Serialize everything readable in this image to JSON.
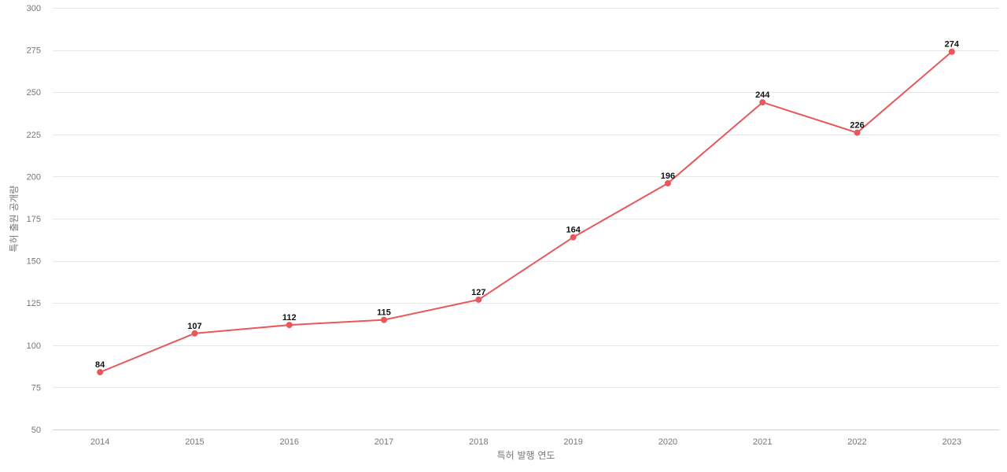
{
  "chart_data": {
    "type": "line",
    "title": "",
    "xlabel": "특허 발행 연도",
    "ylabel": "특허 출원 공개량",
    "x": [
      "2014",
      "2015",
      "2016",
      "2017",
      "2018",
      "2019",
      "2020",
      "2021",
      "2022",
      "2023"
    ],
    "series": [
      {
        "values": [
          84,
          107,
          112,
          115,
          127,
          164,
          196,
          244,
          226,
          274
        ],
        "color": "#e8585a"
      }
    ],
    "ylim": [
      50,
      300
    ],
    "yticks": [
      50,
      75,
      100,
      125,
      150,
      175,
      200,
      225,
      250,
      275,
      300
    ],
    "grid": true,
    "legend": "none",
    "data_labels": true
  }
}
